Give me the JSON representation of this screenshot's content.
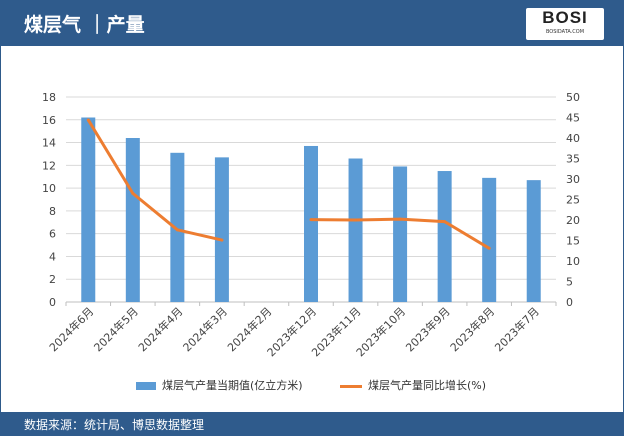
{
  "header": {
    "title": "煤层气 ｜产量",
    "logo": "BOSI",
    "logo_sub": "BOSIDATA.COM"
  },
  "footer": {
    "source": "数据来源：统计局、博思数据整理"
  },
  "colors": {
    "bar": "#5b9bd5",
    "line": "#ed7d31",
    "header": "#2f5b8c"
  },
  "chart_data": {
    "type": "bar+line",
    "categories": [
      "2024年6月",
      "2024年5月",
      "2024年4月",
      "2024年3月",
      "2024年2月",
      "2023年12月",
      "2023年11月",
      "2023年10月",
      "2023年9月",
      "2023年8月",
      "2023年7月"
    ],
    "series": [
      {
        "name": "煤层气产量当期值(亿立方米)",
        "type": "bar",
        "axis": "left",
        "values": [
          16.2,
          14.4,
          13.1,
          12.7,
          null,
          13.7,
          12.6,
          11.9,
          11.5,
          10.9,
          10.7
        ]
      },
      {
        "name": "煤层气产量同比增长(%)",
        "type": "line",
        "axis": "right",
        "values": [
          44.4,
          26.5,
          17.6,
          15.1,
          null,
          20.1,
          20.0,
          20.2,
          19.6,
          13.1,
          null
        ]
      }
    ],
    "ylim_left": [
      0,
      18
    ],
    "yticks_left": [
      0,
      2,
      4,
      6,
      8,
      10,
      12,
      14,
      16,
      18
    ],
    "ylim_right": [
      0,
      50
    ],
    "yticks_right": [
      0,
      5,
      10,
      15,
      20,
      25,
      30,
      35,
      40,
      45,
      50
    ],
    "grid": true,
    "legend": "bottom"
  }
}
